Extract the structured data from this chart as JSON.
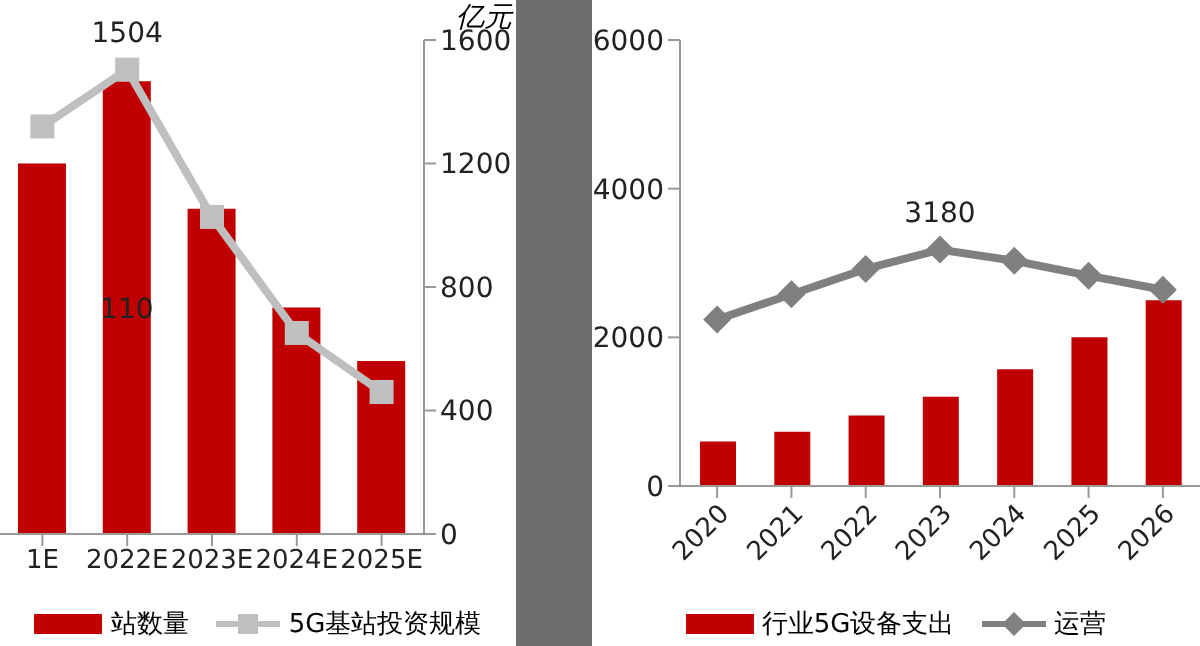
{
  "chart_data": [
    {
      "type": "bar",
      "categories": [
        "1E",
        "2022E",
        "2023E",
        "2024E",
        "2025E"
      ],
      "ylim": [
        0,
        120
      ],
      "y2lim": [
        0,
        1600
      ],
      "y2ticks": [
        0,
        400,
        800,
        1200,
        1600
      ],
      "y2label": "亿元",
      "legend": "bottom",
      "grid": false,
      "series": [
        {
          "name": "站数量",
          "color": "#c00000",
          "values": [
            90,
            110,
            79,
            55,
            42
          ],
          "value_labels": [
            null,
            "110",
            null,
            null,
            null
          ]
        },
        {
          "name": "5G基站投资规模",
          "type": "line",
          "axis": "y2",
          "marker": "square",
          "color": "#bfbfbf",
          "values": [
            1320,
            1504,
            1027,
            651,
            460
          ],
          "value_labels": [
            null,
            "1504",
            null,
            null,
            null
          ]
        }
      ]
    },
    {
      "type": "bar",
      "categories": [
        "2020",
        "2021",
        "2022",
        "2023",
        "2024",
        "2025",
        "2026"
      ],
      "ylim": [
        0,
        6000
      ],
      "yticks": [
        0,
        2000,
        4000,
        6000
      ],
      "legend": "bottom",
      "grid": false,
      "series": [
        {
          "name": "行业5G设备支出",
          "color": "#c00000",
          "values": [
            600,
            730,
            950,
            1200,
            1570,
            2000,
            2500
          ]
        },
        {
          "name": "运营",
          "type": "line",
          "marker": "diamond",
          "color": "#808080",
          "values": [
            2240,
            2580,
            2920,
            3180,
            3030,
            2830,
            2640
          ],
          "value_labels": [
            null,
            null,
            null,
            "3180",
            null,
            null,
            null
          ]
        }
      ]
    }
  ]
}
